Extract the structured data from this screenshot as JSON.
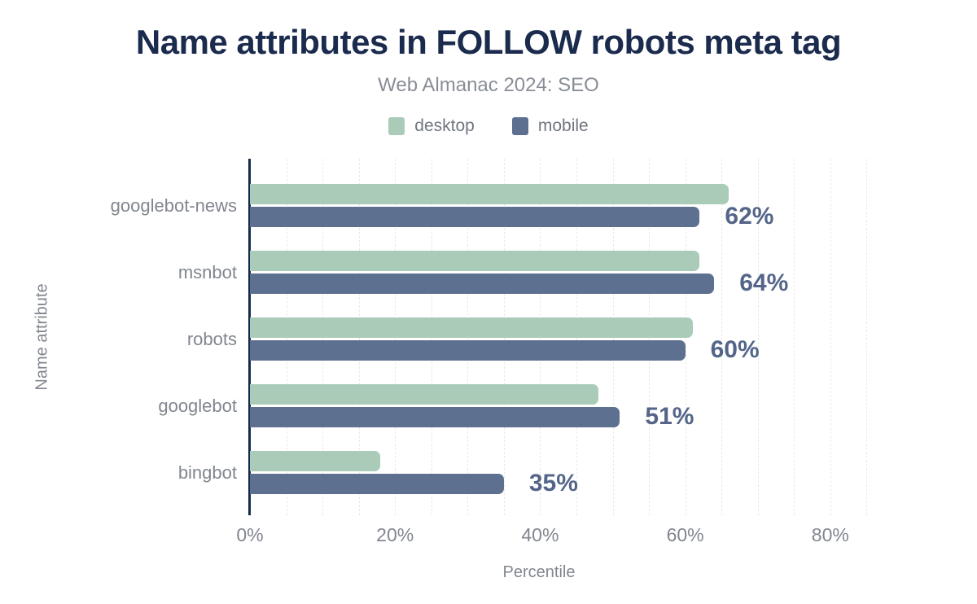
{
  "header": {
    "title": "Name attributes in FOLLOW robots meta tag",
    "subtitle": "Web Almanac 2024: SEO"
  },
  "chart_data": {
    "type": "bar",
    "orientation": "horizontal",
    "title": "Name attributes in FOLLOW robots meta tag",
    "subtitle": "Web Almanac 2024: SEO",
    "xlabel": "Percentile",
    "ylabel": "Name attribute",
    "categories": [
      "googlebot-news",
      "msnbot",
      "robots",
      "googlebot",
      "bingbot"
    ],
    "series": [
      {
        "name": "desktop",
        "color": "#a9cbb8",
        "values": [
          66,
          62,
          61,
          48,
          18
        ]
      },
      {
        "name": "mobile",
        "color": "#5e7090",
        "values": [
          62,
          64,
          60,
          51,
          35
        ]
      }
    ],
    "annotations": [
      "62%",
      "64%",
      "60%",
      "51%",
      "35%"
    ],
    "annotation_series": "mobile",
    "xlim": [
      0,
      89
    ],
    "xticks": [
      {
        "value": 0,
        "label": "0%"
      },
      {
        "value": 20,
        "label": "20%"
      },
      {
        "value": 40,
        "label": "40%"
      },
      {
        "value": 60,
        "label": "60%"
      },
      {
        "value": 80,
        "label": "80%"
      }
    ],
    "grid": "vertical-minor",
    "grid_step": 5,
    "legend_position": "top-center"
  },
  "colors": {
    "title": "#1b2b4d",
    "axis_line": "#16294d",
    "muted_text": "#81868f",
    "value_label": "#546589",
    "gridline": "#e9e9e9"
  }
}
